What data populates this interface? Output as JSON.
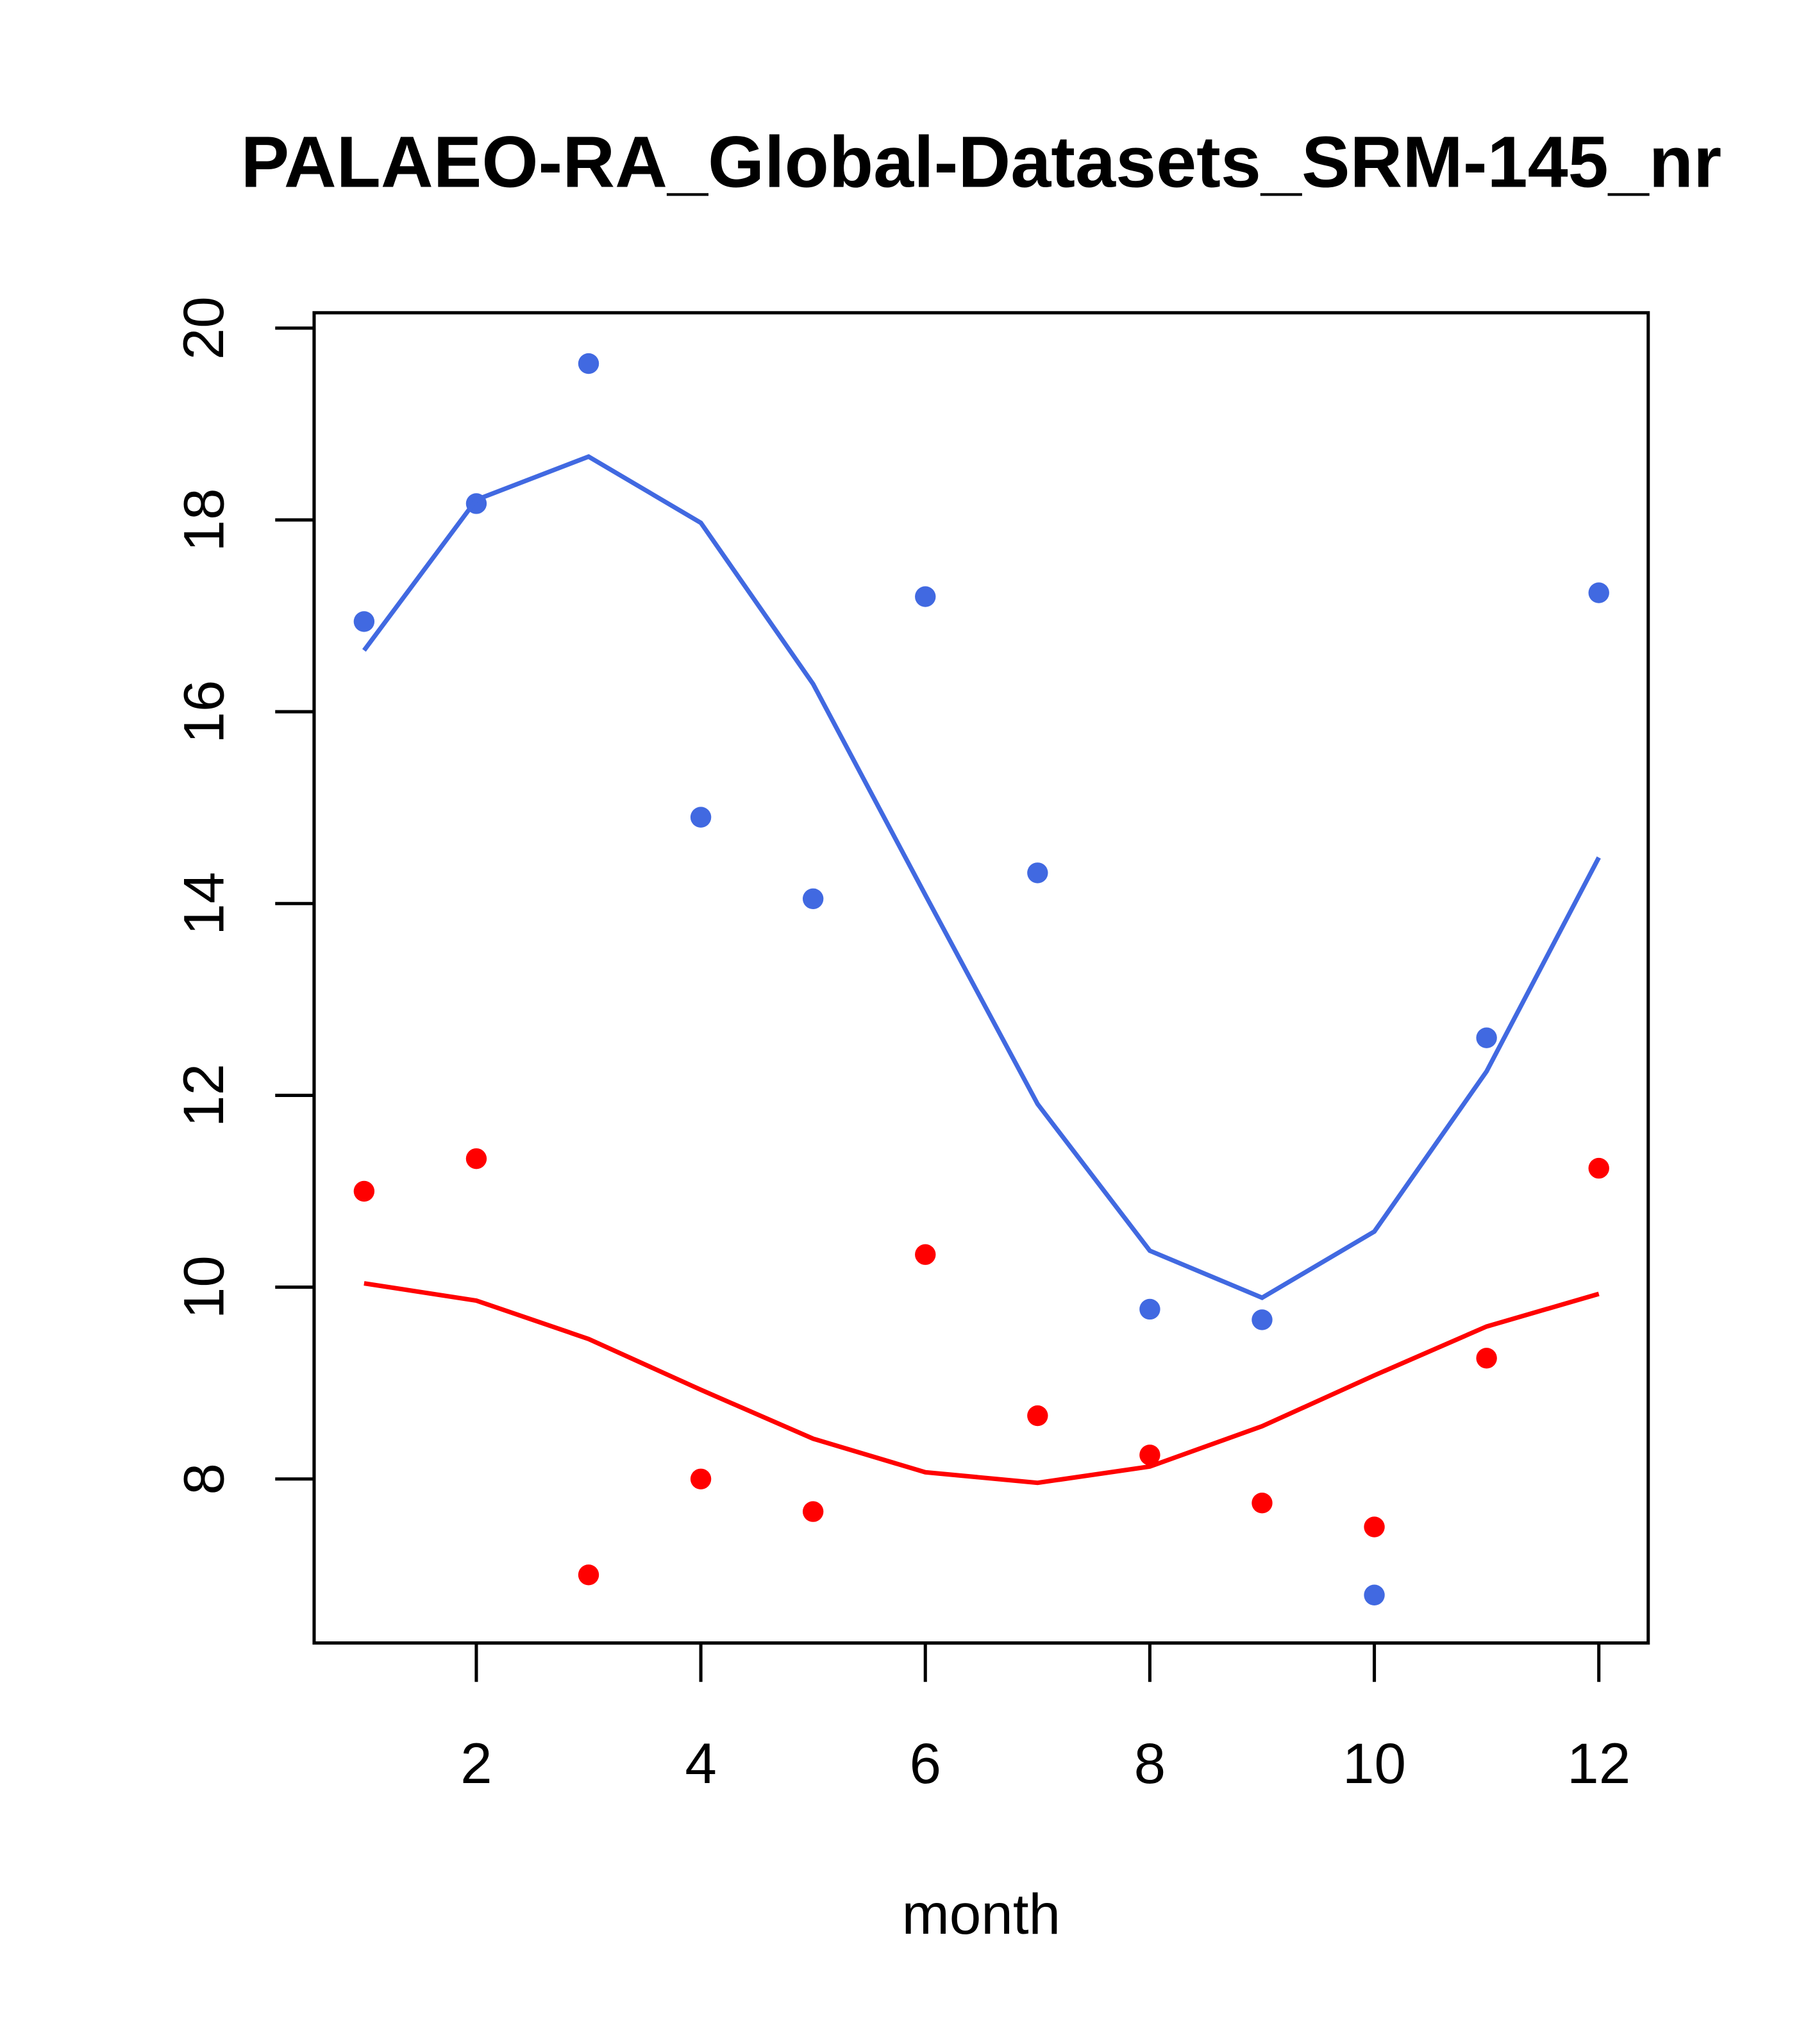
{
  "chart_data": {
    "type": "scatter",
    "title": "PALAEO-RA_Global-Datasets_SRM-145_nr",
    "xlabel": "month",
    "ylabel": "",
    "xlim": [
      0.555,
      12.44
    ],
    "ylim": [
      6.29,
      20.16
    ],
    "xticks": [
      2,
      4,
      6,
      8,
      10,
      12
    ],
    "yticks": [
      8,
      10,
      12,
      14,
      16,
      18,
      20
    ],
    "x": [
      1,
      2,
      3,
      4,
      5,
      6,
      7,
      8,
      9,
      10,
      11,
      12
    ],
    "series": [
      {
        "name": "blue points",
        "type": "scatter",
        "color": "#4169E1",
        "values": [
          16.94,
          18.17,
          19.63,
          14.9,
          14.05,
          17.2,
          14.32,
          9.77,
          9.66,
          6.79,
          12.6,
          17.24
        ]
      },
      {
        "name": "blue fit",
        "type": "line",
        "color": "#4169E1",
        "values": [
          16.64,
          18.21,
          18.66,
          17.97,
          16.29,
          14.09,
          11.91,
          10.38,
          9.89,
          10.58,
          12.25,
          14.48
        ]
      },
      {
        "name": "red points",
        "type": "scatter",
        "color": "#FF0000",
        "values": [
          11.0,
          11.34,
          7.0,
          8.0,
          7.66,
          10.34,
          8.66,
          8.25,
          7.75,
          7.5,
          9.26,
          11.24
        ]
      },
      {
        "name": "red fit",
        "type": "line",
        "color": "#FF0000",
        "values": [
          10.04,
          9.86,
          9.46,
          8.93,
          8.42,
          8.07,
          7.96,
          8.13,
          8.55,
          9.08,
          9.59,
          9.93
        ]
      }
    ]
  }
}
